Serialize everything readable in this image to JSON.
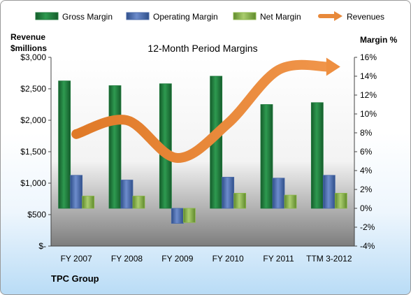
{
  "company": "TPC Group",
  "chart_data": {
    "type": "bar",
    "title": "12-Month Period Margins",
    "left_axis_title": [
      "Revenue",
      "$millions"
    ],
    "right_axis_title": "Margin %",
    "categories": [
      "FY 2007",
      "FY 2008",
      "FY 2009",
      "FY 2010",
      "FY 2011",
      "TTM 3-2012"
    ],
    "left_ticks": [
      "$-",
      "$500",
      "$1,000",
      "$1,500",
      "$2,000",
      "$2,500",
      "$3,000"
    ],
    "left_ylim": [
      0,
      3000
    ],
    "right_ticks": [
      "-4%",
      "-2%",
      "0%",
      "2%",
      "4%",
      "6%",
      "8%",
      "10%",
      "12%",
      "14%",
      "16%"
    ],
    "right_ylim": [
      -4,
      16
    ],
    "series": [
      {
        "name": "Gross Margin",
        "type": "bar",
        "axis": "right",
        "color": "#1f7a3c",
        "values": [
          13.5,
          13.0,
          13.2,
          14.0,
          11.0,
          11.2
        ]
      },
      {
        "name": "Operating Margin",
        "type": "bar",
        "axis": "right",
        "color": "#4a6aa8",
        "values": [
          3.5,
          3.0,
          -1.6,
          3.3,
          3.2,
          3.5
        ]
      },
      {
        "name": "Net Margin",
        "type": "bar",
        "axis": "right",
        "color": "#8db84a",
        "values": [
          1.3,
          1.3,
          -1.5,
          1.6,
          1.4,
          1.6
        ]
      },
      {
        "name": "Revenues",
        "type": "line",
        "axis": "left",
        "color": "#e8893a",
        "values": [
          1780,
          2000,
          1400,
          1950,
          2800,
          2850
        ]
      }
    ],
    "grid": false,
    "legend": "top"
  }
}
